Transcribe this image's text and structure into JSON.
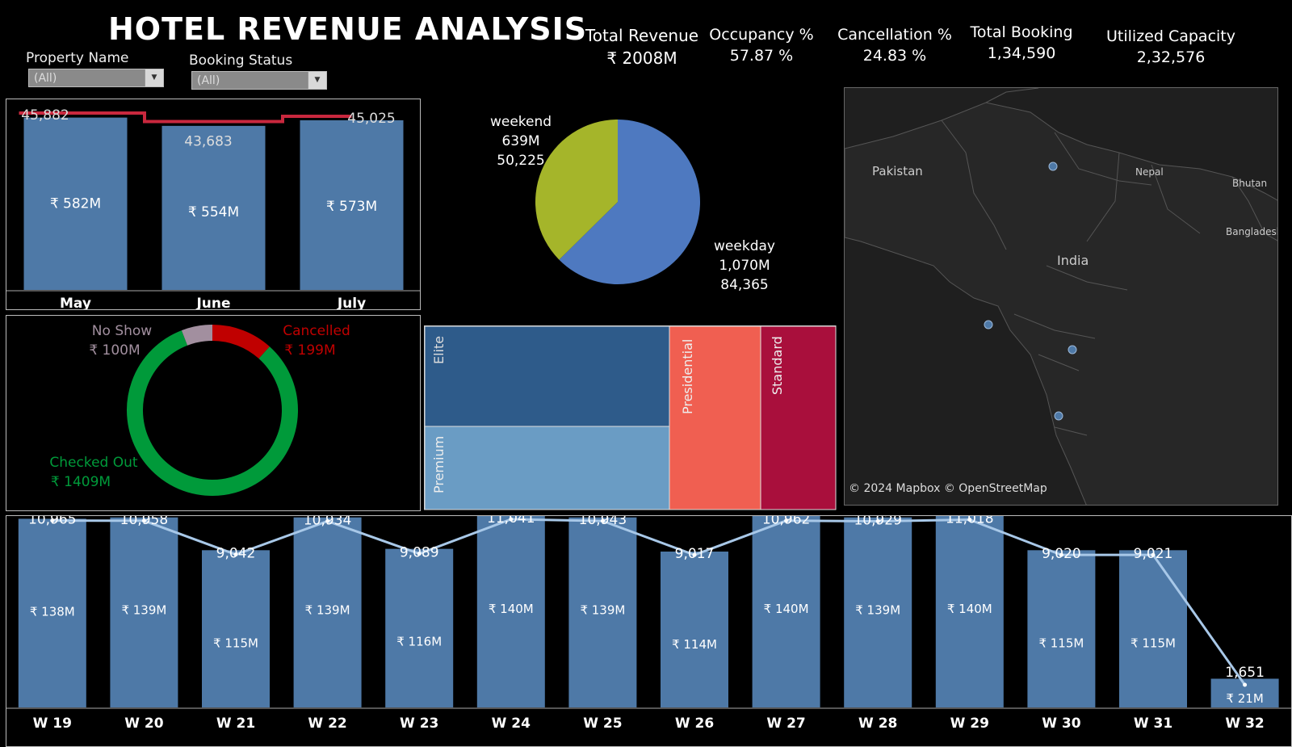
{
  "header": {
    "title": "HOTEL REVENUE ANALYSIS"
  },
  "filters": {
    "property": {
      "label": "Property Name",
      "value": "(All)"
    },
    "booking": {
      "label": "Booking Status",
      "value": "(All)"
    }
  },
  "kpis": [
    {
      "label": "Total Revenue",
      "value": "₹ 2008M"
    },
    {
      "label": "Occupancy %",
      "value": "57.87 %"
    },
    {
      "label": "Cancellation %",
      "value": "24.83 %"
    },
    {
      "label": "Total Booking",
      "value": "1,34,590"
    },
    {
      "label": "Utilized Capacity",
      "value": "2,32,576"
    }
  ],
  "map": {
    "labels": {
      "pakistan": "Pakistan",
      "nepal": "Nepal",
      "bhutan": "Bhutan",
      "bangladesh": "Bangladesh",
      "india": "India"
    },
    "attribution": "© 2024 Mapbox © OpenStreetMap",
    "point_color": "#4e79a7"
  },
  "colors": {
    "bar": "#4e79a7",
    "line_red": "#c9283e",
    "line_light": "#a8c8e8",
    "donut_green": "#009a3a",
    "donut_red": "#c00000",
    "donut_gray": "#a28f9f",
    "pie_blue": "#4e79c0",
    "pie_green": "#a5b52a",
    "tm_elite": "#2e5b8a",
    "tm_premium": "#6a9cc4",
    "tm_presidential": "#f05f51",
    "tm_standard": "#a90f3c"
  },
  "chart_data": [
    {
      "id": "monthly",
      "type": "bar",
      "categories": [
        "May",
        "June",
        "July"
      ],
      "revenue_labels": [
        "₹ 582M",
        "₹ 554M",
        "₹ 573M"
      ],
      "series": [
        {
          "values": [
            582,
            554,
            573
          ]
        },
        {
          "values": [
            45882,
            43683,
            45025
          ]
        }
      ],
      "line_labels": [
        "45,882",
        "43,683",
        "45,025"
      ]
    },
    {
      "id": "day_type",
      "type": "pie",
      "slices": [
        {
          "label": "weekday",
          "value": 1070,
          "value_label": "1,070M",
          "bookings": "84,365"
        },
        {
          "label": "weekend",
          "value": 639,
          "value_label": "639M",
          "bookings": "50,225"
        }
      ]
    },
    {
      "id": "booking_status",
      "type": "pie",
      "slices": [
        {
          "label": "Checked Out",
          "value": 1409,
          "value_label": "₹ 1409M"
        },
        {
          "label": "No Show",
          "value": 100,
          "value_label": "₹ 100M"
        },
        {
          "label": "Cancelled",
          "value": 199,
          "value_label": "₹ 199M"
        }
      ]
    },
    {
      "id": "room_class",
      "type": "heatmap",
      "categories": [
        "Elite",
        "Premium",
        "Presidential",
        "Standard"
      ]
    },
    {
      "id": "weekly",
      "type": "bar",
      "categories": [
        "W 19",
        "W 20",
        "W 21",
        "W 22",
        "W 23",
        "W 24",
        "W 25",
        "W 26",
        "W 27",
        "W 28",
        "W 29",
        "W 30",
        "W 31",
        "W 32"
      ],
      "series": [
        {
          "values": [
            138,
            139,
            115,
            139,
            116,
            140,
            139,
            114,
            140,
            139,
            140,
            115,
            115,
            21
          ]
        },
        {
          "values": [
            10965,
            10958,
            9042,
            10934,
            9089,
            11041,
            10943,
            9017,
            10962,
            10929,
            11018,
            9020,
            9021,
            1651
          ]
        }
      ],
      "revenue_labels": [
        "₹ 138M",
        "₹ 139M",
        "₹ 115M",
        "₹ 139M",
        "₹ 116M",
        "₹ 140M",
        "₹ 139M",
        "₹ 114M",
        "₹ 140M",
        "₹ 139M",
        "₹ 140M",
        "₹ 115M",
        "₹ 115M",
        "₹ 21M"
      ],
      "line_labels": [
        "10,965",
        "10,958",
        "9,042",
        "10,934",
        "9,089",
        "11,041",
        "10,943",
        "9,017",
        "10,962",
        "10,929",
        "11,018",
        "9,020",
        "9,021",
        "1,651"
      ]
    }
  ]
}
